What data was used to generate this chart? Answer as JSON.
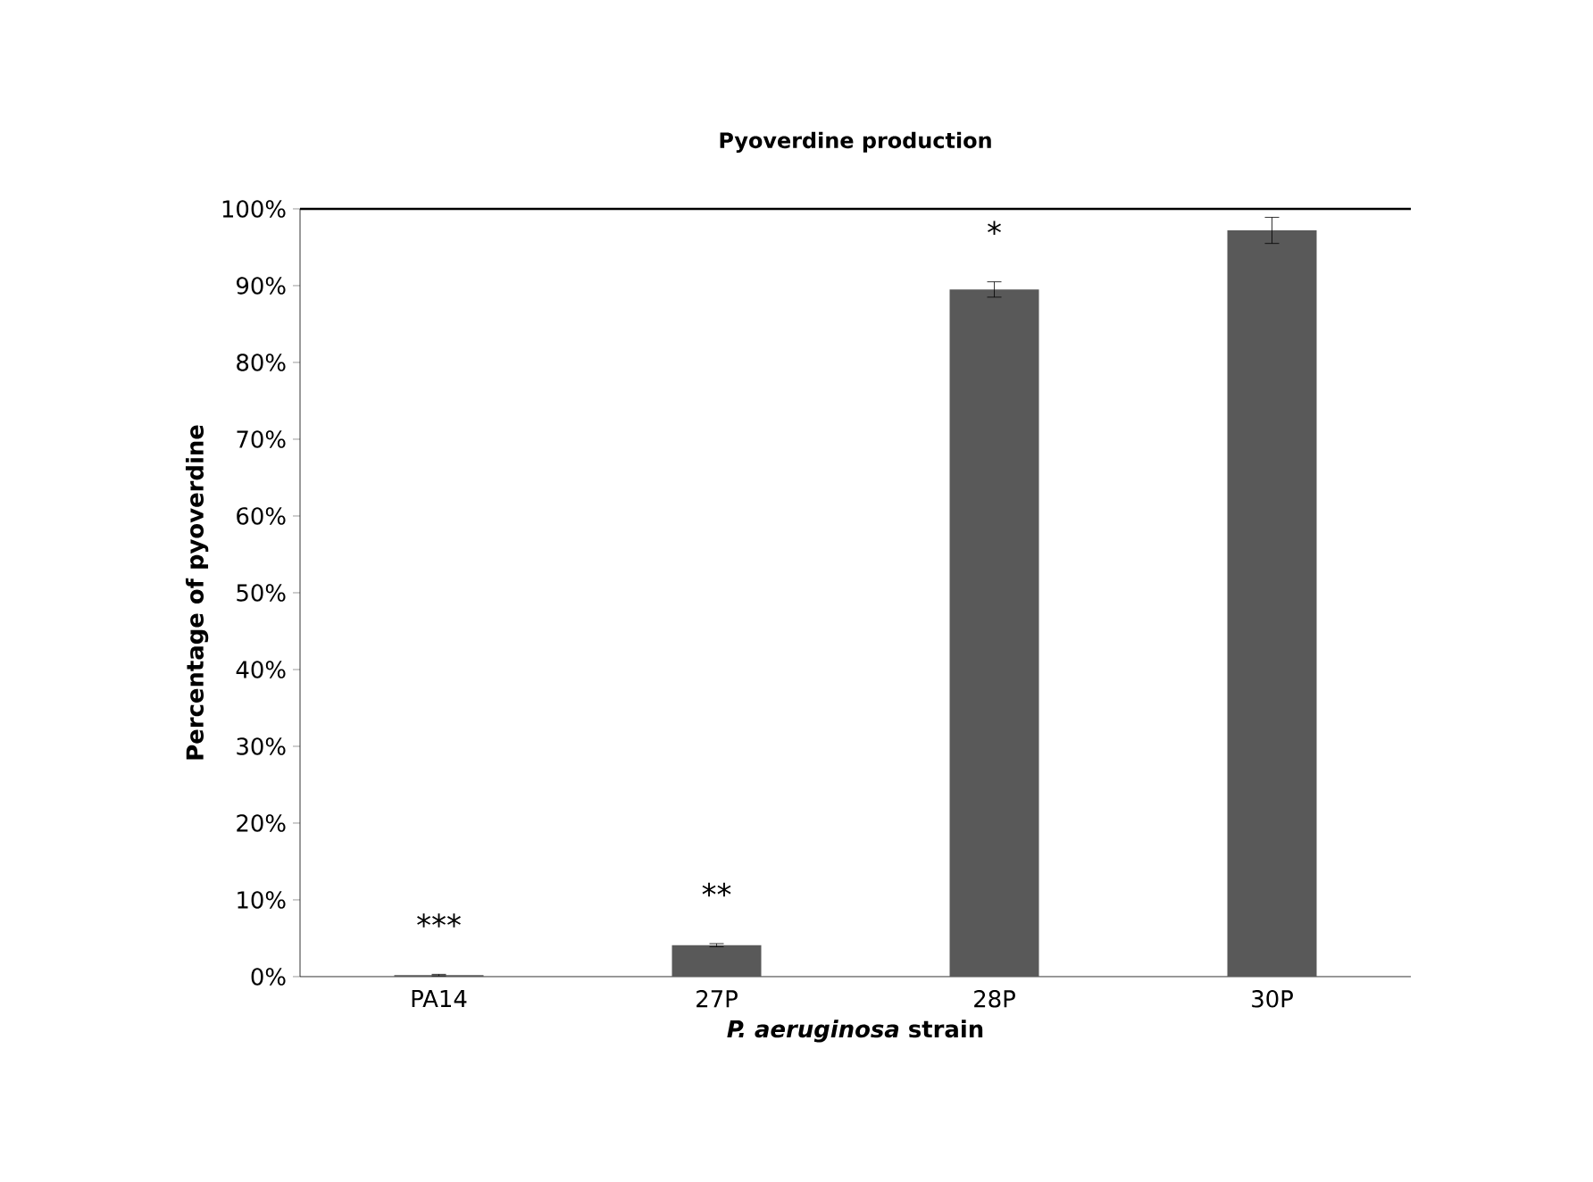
{
  "chart_data": {
    "type": "bar",
    "title": "Pyoverdine production",
    "xlabel": "***P. aeruginosa* strain**",
    "ylabel": "Percentage of pyoverdine",
    "categories": [
      "PA14",
      "27P",
      "28P",
      "30P"
    ],
    "values": [
      0.2,
      4.1,
      89.5,
      97.2
    ],
    "errors": [
      0.1,
      0.2,
      1.0,
      1.7
    ],
    "color": "#595959",
    "ylim": [
      0,
      100
    ],
    "yticks": [
      {
        "value": 0,
        "label": "0%"
      },
      {
        "value": 10,
        "label": "10%"
      },
      {
        "value": 20,
        "label": "20%"
      },
      {
        "value": 30,
        "label": "30%"
      },
      {
        "value": 40,
        "label": "40%"
      },
      {
        "value": 50,
        "label": "50%"
      },
      {
        "value": 60,
        "label": "60%"
      },
      {
        "value": 70,
        "label": "70%"
      },
      {
        "value": 80,
        "label": "80%"
      },
      {
        "value": 90,
        "label": "90%"
      },
      {
        "value": 100,
        "label": "100%"
      }
    ],
    "ref_lines": [
      {
        "axis": "y",
        "value": 100,
        "color": "#000000"
      }
    ],
    "annotations": [
      "***",
      "**",
      "*"
    ]
  }
}
